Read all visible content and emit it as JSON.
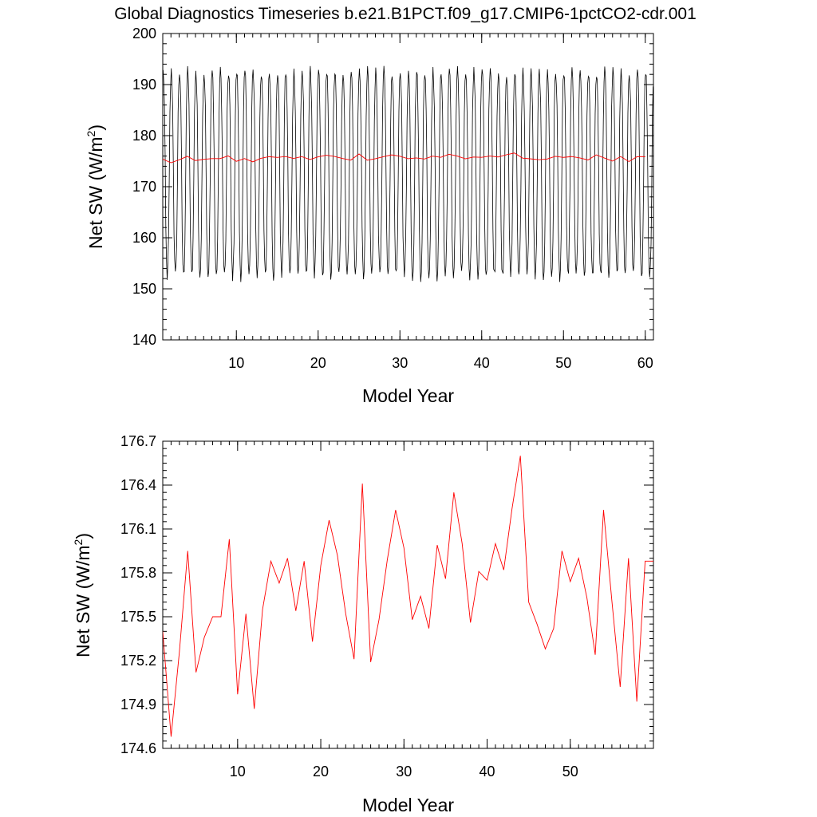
{
  "title": "Global Diagnostics Timeseries b.e21.B1PCT.f09_g17.CMIP6-1pctCO2-cdr.001",
  "colors": {
    "monthly": "#000000",
    "annual": "#ff0000"
  },
  "chart_data": [
    {
      "type": "line",
      "xlabel": "Model Year",
      "ylabel": "Net SW (W/m",
      "ylabel_sup": "2",
      "ylabel_close": ")",
      "xlim": [
        1,
        61
      ],
      "ylim": [
        140,
        200
      ],
      "xticks": [
        10,
        20,
        30,
        40,
        50,
        60
      ],
      "yticks": [
        140,
        150,
        160,
        170,
        180,
        190,
        200
      ],
      "monthly_cycle": {
        "years": 60,
        "start_year": 1,
        "mean": 172.5,
        "amplitude": 20.0
      },
      "series": [
        {
          "color": "#ff0000",
          "x": [
            1,
            2,
            3,
            4,
            5,
            6,
            7,
            8,
            9,
            10,
            11,
            12,
            13,
            14,
            15,
            16,
            17,
            18,
            19,
            20,
            21,
            22,
            23,
            24,
            25,
            26,
            27,
            28,
            29,
            30,
            31,
            32,
            33,
            34,
            35,
            36,
            37,
            38,
            39,
            40,
            41,
            42,
            43,
            44,
            45,
            46,
            47,
            48,
            49,
            50,
            51,
            52,
            53,
            54,
            55,
            56,
            57,
            58,
            59,
            60
          ],
          "values": [
            175.4,
            174.68,
            175.26,
            175.95,
            175.12,
            175.36,
            175.5,
            175.5,
            176.03,
            174.97,
            175.52,
            174.87,
            175.55,
            175.88,
            175.73,
            175.9,
            175.54,
            175.88,
            175.33,
            175.85,
            176.16,
            175.92,
            175.52,
            175.21,
            176.41,
            175.19,
            175.48,
            175.89,
            176.23,
            175.97,
            175.48,
            175.64,
            175.42,
            175.99,
            175.76,
            176.35,
            176.0,
            175.46,
            175.81,
            175.75,
            176.0,
            175.82,
            176.24,
            176.6,
            175.6,
            175.45,
            175.28,
            175.42,
            175.95,
            175.74,
            175.9,
            175.63,
            175.24,
            176.23,
            175.61,
            175.02,
            175.9,
            174.92,
            175.88,
            175.88
          ]
        }
      ]
    },
    {
      "type": "line",
      "xlabel": "Model Year",
      "ylabel": "Net SW (W/m",
      "ylabel_sup": "2",
      "ylabel_close": ")",
      "xlim": [
        1,
        60
      ],
      "ylim": [
        174.6,
        176.7
      ],
      "xticks": [
        10,
        20,
        30,
        40,
        50
      ],
      "yticks": [
        "174.6",
        "174.9",
        "175.2",
        "175.5",
        "175.8",
        "176.1",
        "176.4",
        "176.7"
      ],
      "series": [
        {
          "color": "#ff0000",
          "x": [
            1,
            2,
            3,
            4,
            5,
            6,
            7,
            8,
            9,
            10,
            11,
            12,
            13,
            14,
            15,
            16,
            17,
            18,
            19,
            20,
            21,
            22,
            23,
            24,
            25,
            26,
            27,
            28,
            29,
            30,
            31,
            32,
            33,
            34,
            35,
            36,
            37,
            38,
            39,
            40,
            41,
            42,
            43,
            44,
            45,
            46,
            47,
            48,
            49,
            50,
            51,
            52,
            53,
            54,
            55,
            56,
            57,
            58,
            59,
            60
          ],
          "values": [
            175.4,
            174.68,
            175.26,
            175.95,
            175.12,
            175.36,
            175.5,
            175.5,
            176.03,
            174.97,
            175.52,
            174.87,
            175.55,
            175.88,
            175.73,
            175.9,
            175.54,
            175.88,
            175.33,
            175.85,
            176.16,
            175.92,
            175.52,
            175.21,
            176.41,
            175.19,
            175.48,
            175.89,
            176.23,
            175.97,
            175.48,
            175.64,
            175.42,
            175.99,
            175.76,
            176.35,
            176.0,
            175.46,
            175.81,
            175.75,
            176.0,
            175.82,
            176.24,
            176.6,
            175.6,
            175.45,
            175.28,
            175.42,
            175.95,
            175.74,
            175.9,
            175.63,
            175.24,
            176.23,
            175.61,
            175.02,
            175.9,
            174.92,
            175.88,
            175.88
          ]
        }
      ]
    }
  ]
}
